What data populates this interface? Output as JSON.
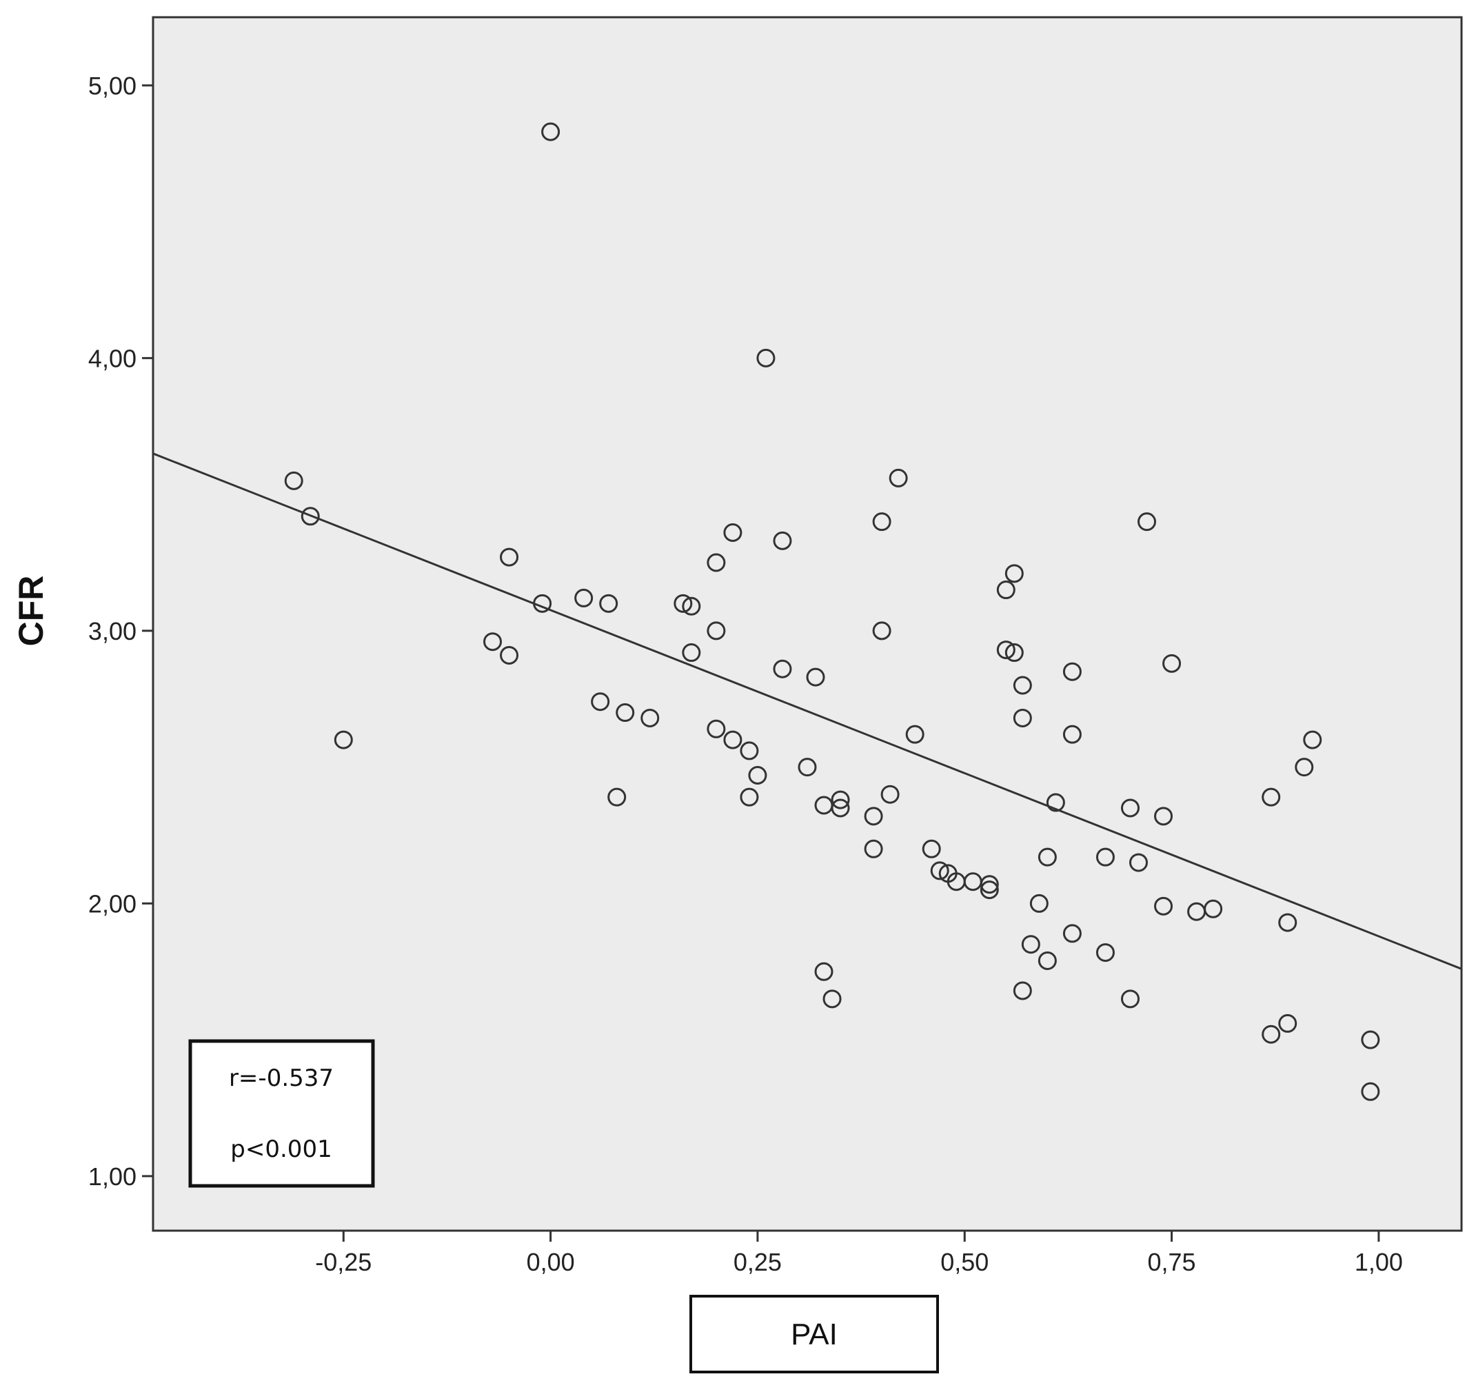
{
  "chart_data": {
    "type": "scatter",
    "xlabel": "PAI",
    "ylabel": "CFR",
    "xlim": [
      -0.48,
      1.1
    ],
    "ylim": [
      0.8,
      5.25
    ],
    "x_ticks": [
      -0.25,
      0.0,
      0.25,
      0.5,
      0.75,
      1.0
    ],
    "x_tick_labels": [
      "-0,25",
      "0,00",
      "0,25",
      "0,50",
      "0,75",
      "1,00"
    ],
    "y_ticks": [
      1.0,
      2.0,
      3.0,
      4.0,
      5.0
    ],
    "y_tick_labels": [
      "1,00",
      "2,00",
      "3,00",
      "4,00",
      "5,00"
    ],
    "grid": false,
    "background": "#ececec",
    "marker": "open-circle",
    "annotations": [
      "r=-0.537",
      "p<0.001"
    ],
    "fit_line": {
      "x": [
        -0.48,
        1.1
      ],
      "y": [
        3.65,
        1.76
      ]
    },
    "points": [
      [
        0.0,
        4.83
      ],
      [
        0.26,
        4.0
      ],
      [
        0.42,
        3.56
      ],
      [
        0.4,
        3.4
      ],
      [
        0.72,
        3.4
      ],
      [
        0.22,
        3.36
      ],
      [
        0.28,
        3.33
      ],
      [
        0.2,
        3.25
      ],
      [
        0.56,
        3.21
      ],
      [
        0.55,
        3.15
      ],
      [
        -0.31,
        3.55
      ],
      [
        -0.29,
        3.42
      ],
      [
        -0.25,
        2.6
      ],
      [
        -0.05,
        3.27
      ],
      [
        -0.01,
        3.1
      ],
      [
        -0.07,
        2.96
      ],
      [
        -0.05,
        2.91
      ],
      [
        0.04,
        3.12
      ],
      [
        0.07,
        3.1
      ],
      [
        0.16,
        3.1
      ],
      [
        0.17,
        3.09
      ],
      [
        0.2,
        3.0
      ],
      [
        0.17,
        2.92
      ],
      [
        0.4,
        3.0
      ],
      [
        0.55,
        2.93
      ],
      [
        0.56,
        2.92
      ],
      [
        0.75,
        2.88
      ],
      [
        0.28,
        2.86
      ],
      [
        0.32,
        2.83
      ],
      [
        0.57,
        2.8
      ],
      [
        0.63,
        2.85
      ],
      [
        0.06,
        2.74
      ],
      [
        0.09,
        2.7
      ],
      [
        0.12,
        2.68
      ],
      [
        0.57,
        2.68
      ],
      [
        0.2,
        2.64
      ],
      [
        0.22,
        2.6
      ],
      [
        0.24,
        2.56
      ],
      [
        0.25,
        2.47
      ],
      [
        0.31,
        2.5
      ],
      [
        0.44,
        2.62
      ],
      [
        0.63,
        2.62
      ],
      [
        0.92,
        2.6
      ],
      [
        0.91,
        2.5
      ],
      [
        0.08,
        2.39
      ],
      [
        0.24,
        2.39
      ],
      [
        0.33,
        2.36
      ],
      [
        0.35,
        2.38
      ],
      [
        0.35,
        2.35
      ],
      [
        0.41,
        2.4
      ],
      [
        0.39,
        2.32
      ],
      [
        0.61,
        2.37
      ],
      [
        0.7,
        2.35
      ],
      [
        0.74,
        2.32
      ],
      [
        0.87,
        2.39
      ],
      [
        0.39,
        2.2
      ],
      [
        0.46,
        2.2
      ],
      [
        0.47,
        2.12
      ],
      [
        0.48,
        2.11
      ],
      [
        0.49,
        2.08
      ],
      [
        0.51,
        2.08
      ],
      [
        0.53,
        2.07
      ],
      [
        0.53,
        2.05
      ],
      [
        0.6,
        2.17
      ],
      [
        0.67,
        2.17
      ],
      [
        0.71,
        2.15
      ],
      [
        0.59,
        2.0
      ],
      [
        0.74,
        1.99
      ],
      [
        0.78,
        1.97
      ],
      [
        0.8,
        1.98
      ],
      [
        0.89,
        1.93
      ],
      [
        0.63,
        1.89
      ],
      [
        0.58,
        1.85
      ],
      [
        0.6,
        1.79
      ],
      [
        0.67,
        1.82
      ],
      [
        0.33,
        1.75
      ],
      [
        0.34,
        1.65
      ],
      [
        0.57,
        1.68
      ],
      [
        0.7,
        1.65
      ],
      [
        0.87,
        1.52
      ],
      [
        0.89,
        1.56
      ],
      [
        0.99,
        1.5
      ],
      [
        0.99,
        1.31
      ]
    ]
  }
}
